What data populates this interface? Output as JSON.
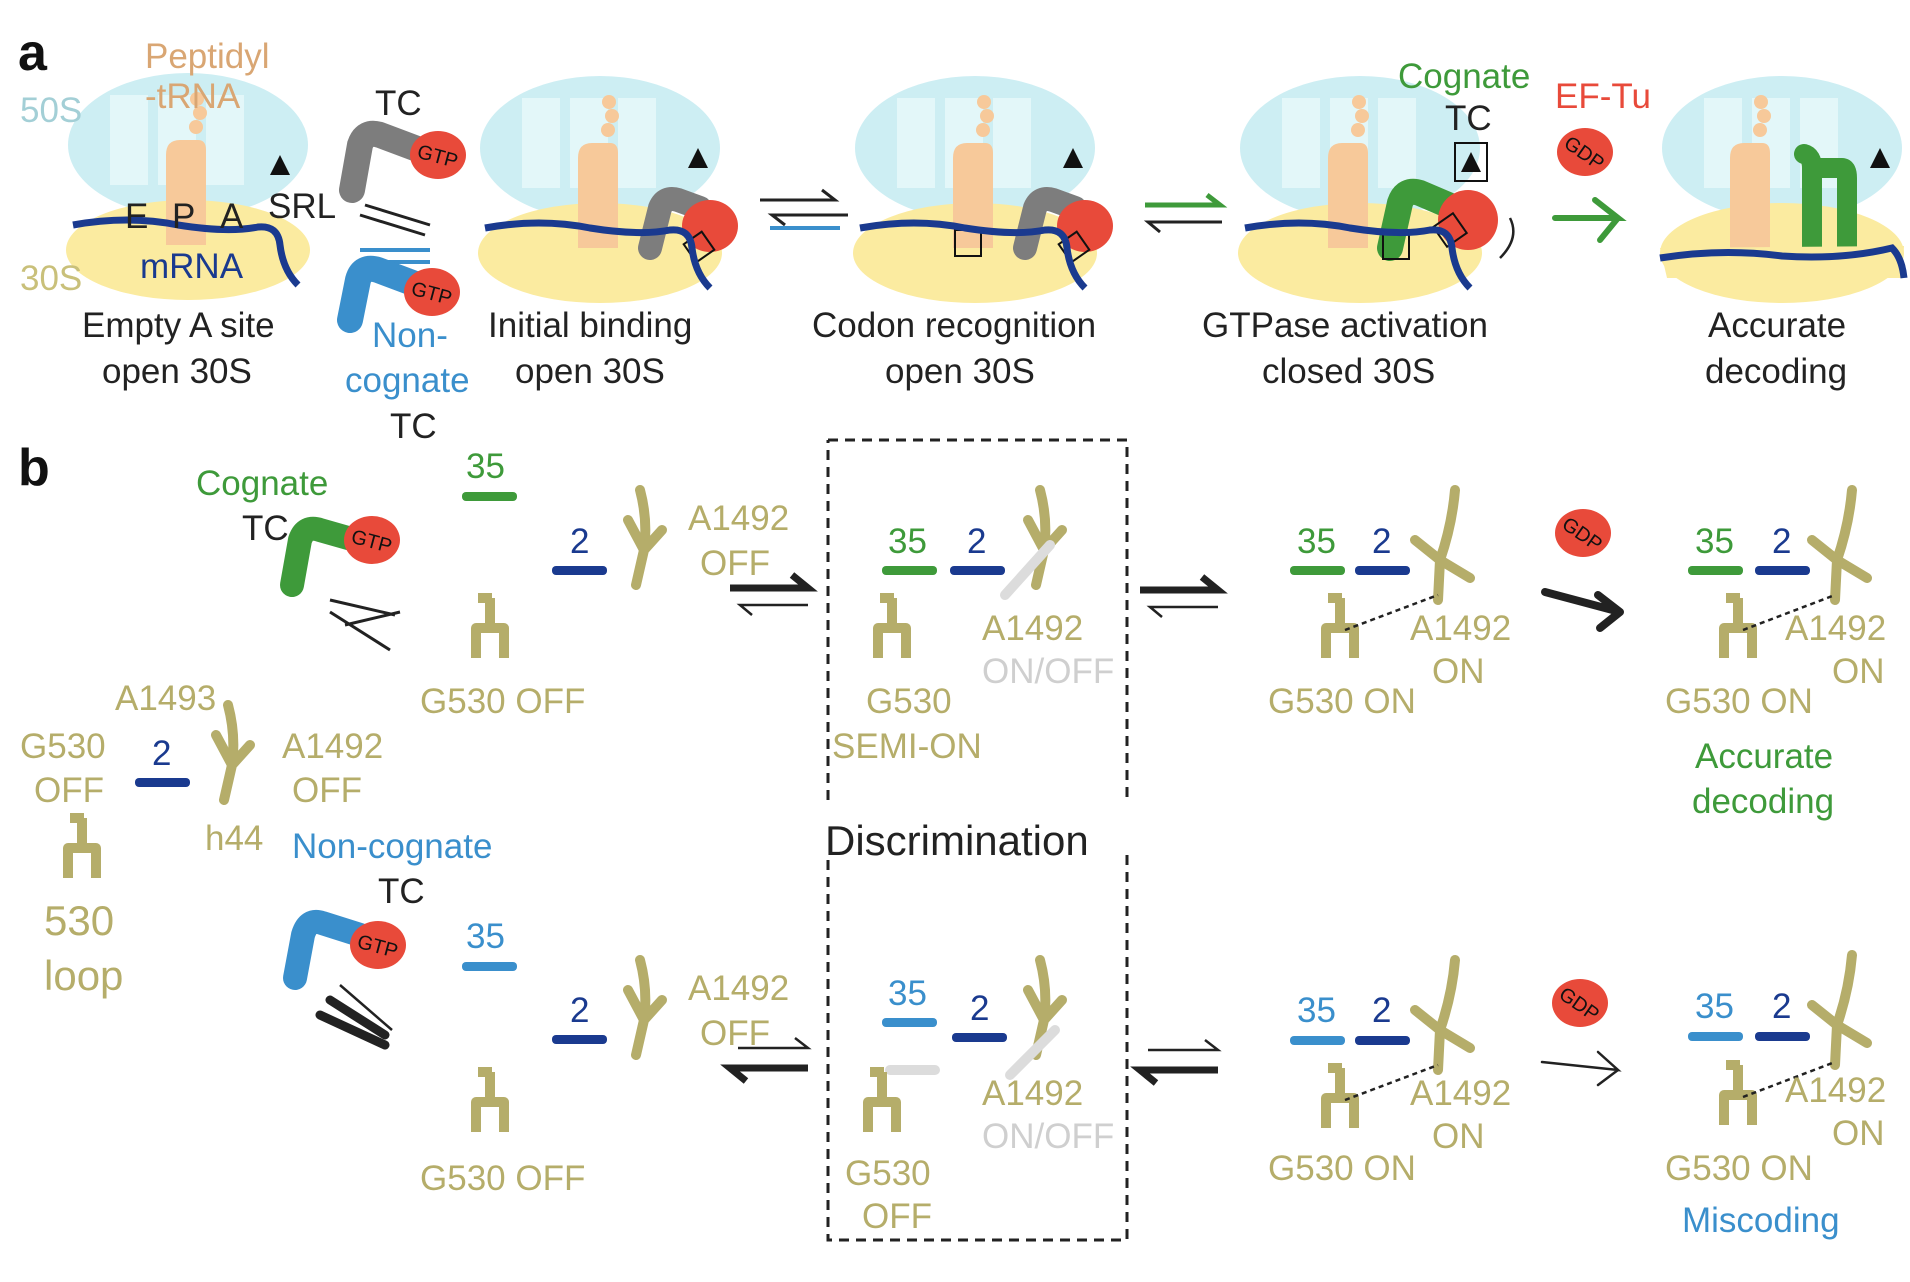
{
  "panel_a": {
    "letter": "a",
    "label_50s": "50S",
    "label_30s": "30S",
    "peptidyl_1": "Peptidyl",
    "peptidyl_2": "-tRNA",
    "site_e": "E",
    "site_p": "P",
    "site_a": "A",
    "mrna": "mRNA",
    "srl": "SRL",
    "tc_top": "TC",
    "gtp": "GTP",
    "noncog_1": "Non-",
    "noncog_2": "cognate",
    "tc_bottom": "TC",
    "cognate": "Cognate",
    "tc_cognate": "TC",
    "eftu": "EF-Tu",
    "gdp": "GDP",
    "stages": [
      {
        "line1": "Empty A site",
        "line2": "open 30S"
      },
      {
        "line1": "Initial binding",
        "line2": "open 30S"
      },
      {
        "line1": "Codon recognition",
        "line2": "open 30S"
      },
      {
        "line1": "GTPase activation",
        "line2": "closed 30S"
      },
      {
        "line1": "Accurate",
        "line2": "decoding"
      }
    ]
  },
  "panel_b": {
    "letter": "b",
    "cognate": "Cognate",
    "noncognate": "Non-cognate",
    "tc": "TC",
    "gtp": "GTP",
    "gdp": "GDP",
    "n35": "35",
    "n2": "2",
    "a1492_off_1": "A1492",
    "a1492_off_2": "OFF",
    "a1492_onoff_1": "A1492",
    "a1492_onoff_2": "ON/OFF",
    "a1492_on_1": "A1492",
    "a1492_on_2": "ON",
    "g530_off": "G530 OFF",
    "g530_on": "G530 ON",
    "g530_semi_1": "G530",
    "g530_semi_2": "SEMI-ON",
    "g530_off2_1": "G530",
    "g530_off2_2": "OFF",
    "legend_a1493": "A1493",
    "legend_g530_1": "G530",
    "legend_g530_2": "OFF",
    "legend_a1492_1": "A1492",
    "legend_a1492_2": "OFF",
    "legend_h44": "h44",
    "legend_530_1": "530",
    "legend_530_2": "loop",
    "discrimination": "Discrimination",
    "accurate_1": "Accurate",
    "accurate_2": "decoding",
    "miscoding": "Miscoding"
  },
  "colors": {
    "olive": "#b5ad6a",
    "green": "#3e9a3a",
    "blue": "#3a8fcc",
    "navy": "#1a3a8f",
    "red": "#e84a3a",
    "grey_tRNA": "#7d7d7d",
    "peach": "#f7c99a",
    "teal_50s": "#cdeef3",
    "yellow_30s": "#fbeba0"
  }
}
